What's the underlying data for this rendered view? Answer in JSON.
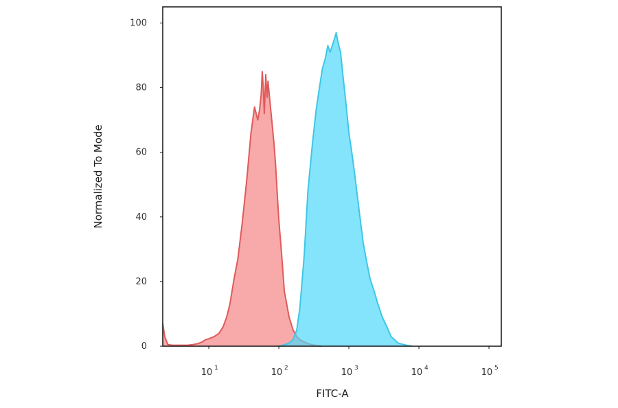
{
  "chart_data": {
    "type": "area",
    "title": "",
    "xlabel": "FITC-A",
    "ylabel": "Normalized To Mode",
    "xscale": "log",
    "xlim": [
      2.2,
      150000
    ],
    "ylim": [
      0,
      105
    ],
    "grid": false,
    "legend": "none",
    "yticks": [
      0,
      20,
      40,
      60,
      80,
      100
    ],
    "xticks": [
      {
        "value": 10,
        "base": "10",
        "exp": "1"
      },
      {
        "value": 100,
        "base": "10",
        "exp": "2"
      },
      {
        "value": 1000,
        "base": "10",
        "exp": "3"
      },
      {
        "value": 10000,
        "base": "10",
        "exp": "4"
      },
      {
        "value": 100000,
        "base": "10",
        "exp": "5"
      }
    ],
    "series": [
      {
        "color": "#e05a5a",
        "fill": "#f58c8c",
        "fill_opacity": 0.75,
        "x": [
          2.2,
          2.35,
          2.6,
          3,
          4,
          5,
          6,
          7,
          8,
          9,
          10,
          12,
          14,
          16,
          18,
          20,
          23,
          26,
          30,
          35,
          40,
          45,
          50,
          53,
          56,
          58,
          60,
          62,
          65,
          68,
          70,
          73,
          76,
          80,
          85,
          90,
          95,
          100,
          110,
          120,
          140,
          160,
          180,
          200,
          230,
          260,
          300,
          350,
          400
        ],
        "y": [
          7,
          3,
          0.5,
          0.3,
          0.3,
          0.3,
          0.5,
          0.8,
          1.3,
          2,
          2.3,
          3,
          4,
          6,
          9,
          13,
          21,
          27,
          38,
          52,
          66,
          74,
          70,
          73,
          78,
          85,
          80,
          72,
          84,
          77,
          82,
          78,
          74,
          69,
          63,
          56,
          47,
          39,
          28,
          17,
          9,
          5,
          3,
          2,
          1.3,
          0.8,
          0.4,
          0.2,
          0
        ]
      },
      {
        "color": "#3fc6e6",
        "fill": "#4fd8f9",
        "fill_opacity": 0.7,
        "x": [
          100,
          120,
          140,
          160,
          180,
          200,
          230,
          260,
          300,
          340,
          380,
          420,
          460,
          500,
          540,
          580,
          620,
          660,
          700,
          760,
          830,
          900,
          1000,
          1100,
          1200,
          1400,
          1600,
          1800,
          2000,
          2300,
          2600,
          3000,
          3500,
          4000,
          4500,
          5000,
          6000,
          7000,
          8000
        ],
        "y": [
          0,
          0.4,
          1,
          2,
          5,
          12,
          28,
          48,
          62,
          73,
          80,
          86,
          89,
          93,
          91,
          93,
          95,
          97,
          94,
          91,
          83,
          76,
          66,
          60,
          54,
          42,
          32,
          26,
          21,
          17,
          13,
          9,
          6,
          3,
          2,
          1,
          0.5,
          0.2,
          0
        ]
      }
    ]
  }
}
